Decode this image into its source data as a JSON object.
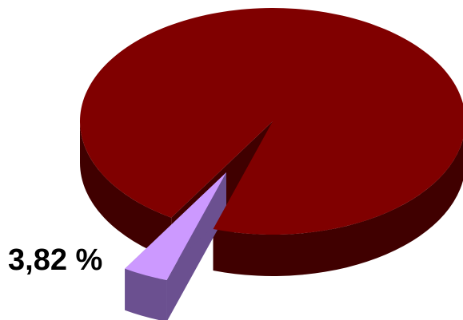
{
  "chart_data": {
    "type": "pie",
    "style": "3d-exploded",
    "slices": [
      {
        "value": 96.18,
        "color": "#800000",
        "side_color": "#400000"
      },
      {
        "value": 3.82,
        "label": "3,82 %",
        "color": "#cc99ff",
        "side_color": "#6b5090",
        "exploded": true
      }
    ]
  }
}
